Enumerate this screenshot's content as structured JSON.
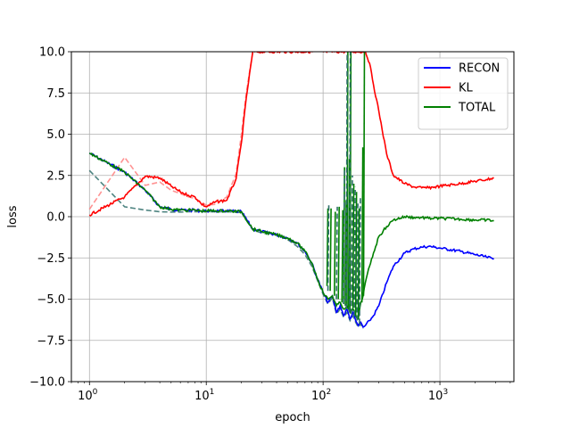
{
  "chart_data": {
    "type": "line",
    "xlabel": "epoch",
    "ylabel": "loss",
    "xscale": "log",
    "xlim": [
      0.7,
      4300
    ],
    "ylim": [
      -10.0,
      10.0
    ],
    "grid": true,
    "legend_position": "top-right",
    "x_ticks": [
      {
        "value": 1,
        "base": "10",
        "exp": "0"
      },
      {
        "value": 10,
        "base": "10",
        "exp": "1"
      },
      {
        "value": 100,
        "base": "10",
        "exp": "2"
      },
      {
        "value": 1000,
        "base": "10",
        "exp": "3"
      }
    ],
    "y_ticks": [
      {
        "value": -10.0,
        "label": "−10.0"
      },
      {
        "value": -7.5,
        "label": "−7.5"
      },
      {
        "value": -5.0,
        "label": "−5.0"
      },
      {
        "value": -2.5,
        "label": "−2.5"
      },
      {
        "value": 0.0,
        "label": "0.0"
      },
      {
        "value": 2.5,
        "label": "2.5"
      },
      {
        "value": 5.0,
        "label": "5.0"
      },
      {
        "value": 7.5,
        "label": "7.5"
      },
      {
        "value": 10.0,
        "label": "10.0"
      }
    ],
    "series": [
      {
        "name": "RECON",
        "color": "#0000ff",
        "style": "solid",
        "legend": true,
        "x": [
          1,
          2,
          3,
          4,
          5,
          6,
          7,
          8,
          9,
          10,
          12,
          15,
          20,
          25,
          30,
          40,
          50,
          60,
          70,
          80,
          90,
          100,
          110,
          120,
          130,
          140,
          150,
          160,
          170,
          180,
          190,
          200,
          210,
          220,
          230,
          250,
          270,
          300,
          350,
          400,
          500,
          600,
          700,
          800,
          900,
          1000,
          1500,
          2000,
          2500,
          2900
        ],
        "y": [
          3.85,
          2.7,
          1.6,
          0.6,
          0.45,
          0.4,
          0.4,
          0.4,
          0.35,
          0.35,
          0.35,
          0.35,
          0.3,
          -0.75,
          -0.9,
          -1.1,
          -1.3,
          -1.6,
          -2.1,
          -2.8,
          -3.8,
          -4.6,
          -5.2,
          -4.8,
          -5.8,
          -5.4,
          -6.0,
          -5.6,
          -6.2,
          -5.8,
          -6.3,
          -6.6,
          -6.4,
          -6.7,
          -6.6,
          -6.3,
          -6.0,
          -5.4,
          -4.0,
          -3.0,
          -2.2,
          -1.95,
          -1.85,
          -1.8,
          -1.85,
          -1.9,
          -2.1,
          -2.3,
          -2.45,
          -2.55
        ]
      },
      {
        "name": "KL",
        "color": "#ff0000",
        "style": "solid",
        "legend": true,
        "x": [
          1,
          2,
          3,
          4,
          5,
          6,
          7,
          8,
          9,
          10,
          12,
          15,
          18,
          20,
          22,
          25,
          230,
          250,
          270,
          300,
          350,
          400,
          500,
          600,
          700,
          800,
          900,
          1000,
          1500,
          2000,
          2500,
          2900
        ],
        "y": [
          0.1,
          1.2,
          2.45,
          2.35,
          1.85,
          1.5,
          1.3,
          1.2,
          0.8,
          0.6,
          0.9,
          1.0,
          2.3,
          4.5,
          7.2,
          10.0,
          10.0,
          9.3,
          8.0,
          6.4,
          3.8,
          2.5,
          2.0,
          1.8,
          1.75,
          1.75,
          1.8,
          1.85,
          2.0,
          2.15,
          2.25,
          2.35
        ]
      },
      {
        "name": "TOTAL",
        "color": "#008000",
        "style": "solid",
        "legend": true,
        "x": [
          1,
          2,
          3,
          4,
          5,
          6,
          7,
          8,
          9,
          10,
          12,
          15,
          20,
          25,
          30,
          40,
          50,
          60,
          70,
          80,
          90,
          100,
          110,
          120,
          130,
          140,
          150,
          160,
          170,
          180,
          190,
          200,
          210,
          220,
          230,
          250,
          270,
          300,
          350,
          400,
          500,
          600,
          700,
          800,
          1000,
          1500,
          2000,
          2500,
          2900
        ],
        "y": [
          3.85,
          2.7,
          1.6,
          0.6,
          0.45,
          0.4,
          0.4,
          0.4,
          0.35,
          0.35,
          0.35,
          0.35,
          0.3,
          -0.75,
          -0.9,
          -1.1,
          -1.3,
          -1.6,
          -2.1,
          -2.8,
          -3.8,
          -4.6,
          -5.0,
          -4.8,
          -5.4,
          -5.2,
          -5.6,
          -5.4,
          -5.8,
          -5.6,
          -6.0,
          -6.2,
          -5.2,
          -4.8,
          -4.0,
          -3.0,
          -2.2,
          -1.2,
          -0.6,
          -0.2,
          0.0,
          -0.05,
          -0.05,
          -0.1,
          -0.1,
          -0.15,
          -0.2,
          -0.2,
          -0.25
        ]
      },
      {
        "name": "",
        "color": "#ff8080",
        "style": "dashed",
        "legend": false,
        "x": [
          1,
          2,
          3,
          4,
          5,
          6,
          7,
          8,
          9,
          10,
          12,
          15,
          18,
          20,
          22,
          25
        ],
        "y": [
          0.45,
          3.6,
          1.9,
          2.1,
          1.6,
          1.4,
          1.2,
          1.1,
          0.9,
          0.7,
          0.75,
          1.2,
          2.6,
          5.0,
          7.5,
          10.0
        ]
      },
      {
        "name": "",
        "color": "#2f6e6b",
        "style": "dashed",
        "legend": false,
        "x": [
          1,
          2,
          3,
          4,
          5,
          6,
          7,
          8,
          9,
          10,
          12,
          15,
          20,
          25,
          30,
          40,
          50,
          60,
          70,
          80,
          90,
          100,
          110,
          120,
          130,
          140,
          150,
          160,
          170,
          180,
          190,
          200,
          210,
          220
        ],
        "y": [
          2.8,
          0.6,
          0.4,
          0.3,
          0.28,
          0.28,
          0.3,
          0.3,
          0.3,
          0.3,
          0.3,
          0.3,
          0.25,
          -0.8,
          -1.0,
          -1.1,
          -1.4,
          -1.8,
          -2.3,
          -3.0,
          -3.9,
          -4.7,
          -5.3,
          -4.9,
          -5.9,
          -5.6,
          -6.1,
          -5.8,
          -6.3,
          -6.0,
          -6.4,
          -6.7,
          -6.5,
          -6.8
        ]
      }
    ],
    "spikes": [
      {
        "series": "TOTAL",
        "points": [
          [
            108,
            -4.2,
            0.5
          ],
          [
            115,
            -4.5,
            0.5
          ],
          [
            125,
            -4.8,
            0.3
          ],
          [
            135,
            -5.0,
            0.6
          ],
          [
            145,
            -5.2,
            0.4
          ],
          [
            150,
            -5.3,
            3.0
          ],
          [
            155,
            -5.4,
            1.0
          ],
          [
            160,
            -5.6,
            10.0
          ],
          [
            165,
            -5.5,
            3.5
          ],
          [
            170,
            -5.8,
            10.0
          ],
          [
            180,
            -5.7,
            2.0
          ],
          [
            190,
            -6.0,
            1.5
          ],
          [
            200,
            -6.2,
            0.5
          ],
          [
            215,
            -5.2,
            4.2
          ],
          [
            222,
            -4.8,
            10.0
          ]
        ]
      },
      {
        "series": "",
        "color": "#2f6e6b",
        "points": [
          [
            110,
            -4.5,
            0.8
          ],
          [
            130,
            -5.0,
            0.6
          ],
          [
            150,
            -5.3,
            2.8
          ],
          [
            158,
            -5.6,
            10.0
          ],
          [
            168,
            -5.8,
            10.0
          ],
          [
            175,
            -5.9,
            2.5
          ],
          [
            185,
            -6.0,
            1.8
          ],
          [
            195,
            -6.3,
            0.8
          ],
          [
            205,
            -6.5,
            1.2
          ]
        ]
      }
    ]
  }
}
